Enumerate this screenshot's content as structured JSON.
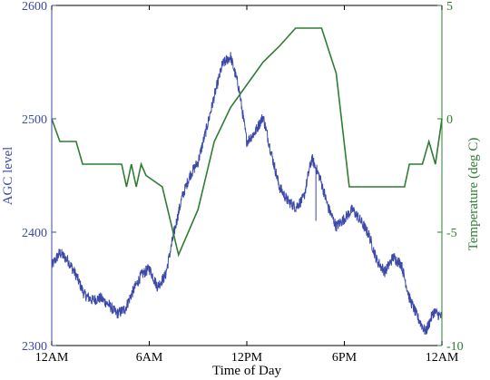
{
  "chart_data": {
    "type": "line",
    "title": "",
    "xlabel": "Time of Day",
    "ylabel_left": "AGC level",
    "ylabel_right": "Temperature (deg C)",
    "x_tick_labels": [
      "12AM",
      "6AM",
      "12PM",
      "6PM",
      "12AM"
    ],
    "x_ticks_hours": [
      0,
      6,
      12,
      18,
      24
    ],
    "xlim_hours": [
      0,
      24
    ],
    "ylim_left": [
      2300,
      2600
    ],
    "y_ticks_left": [
      2300,
      2400,
      2500,
      2600
    ],
    "ylim_right": [
      -10,
      5
    ],
    "y_ticks_right": [
      -10,
      -5,
      0,
      5
    ],
    "grid": false,
    "legend": "none",
    "colors": {
      "agc": "#3b4aa8",
      "temperature": "#2e7d32",
      "axis": "#000000"
    },
    "series": [
      {
        "axis": "left",
        "noise_amplitude": 5,
        "x_hours": [
          0,
          0.5,
          1,
          1.5,
          2,
          2.5,
          3,
          3.5,
          4,
          4.5,
          5,
          5.5,
          6,
          6.5,
          7,
          7.5,
          8,
          8.5,
          9,
          9.5,
          10,
          10.5,
          11,
          11.5,
          12,
          12.5,
          13,
          13.5,
          14,
          14.5,
          15,
          15.5,
          15.8,
          16,
          16.5,
          17,
          17.5,
          18,
          18.5,
          19,
          19.5,
          20,
          20.5,
          21,
          21.5,
          22,
          22.5,
          23,
          23.5,
          24
        ],
        "values": [
          2370,
          2382,
          2375,
          2362,
          2345,
          2340,
          2342,
          2336,
          2328,
          2332,
          2348,
          2362,
          2368,
          2352,
          2362,
          2398,
          2430,
          2450,
          2462,
          2490,
          2520,
          2548,
          2555,
          2528,
          2480,
          2488,
          2502,
          2470,
          2440,
          2428,
          2422,
          2430,
          2452,
          2465,
          2448,
          2422,
          2405,
          2412,
          2420,
          2410,
          2398,
          2375,
          2365,
          2378,
          2372,
          2342,
          2325,
          2312,
          2330,
          2325
        ]
      },
      {
        "axis": "right",
        "x_hours": [
          0,
          0.5,
          1.5,
          1.9,
          4.3,
          4.6,
          4.9,
          5.2,
          5.5,
          5.8,
          6.8,
          7.8,
          9,
          10,
          11,
          12,
          13,
          14,
          15,
          16.6,
          17.5,
          18.3,
          19,
          21.7,
          22,
          22.5,
          22.8,
          23.2,
          23.6,
          24
        ],
        "values": [
          0,
          -1,
          -1,
          -2,
          -2,
          -3,
          -2,
          -3,
          -2,
          -2.5,
          -3,
          -6,
          -4,
          -1,
          0.5,
          1.5,
          2.5,
          3.2,
          4,
          4,
          2,
          -3,
          -3,
          -3,
          -2,
          -2,
          -2,
          -1,
          -2,
          0
        ]
      }
    ]
  }
}
